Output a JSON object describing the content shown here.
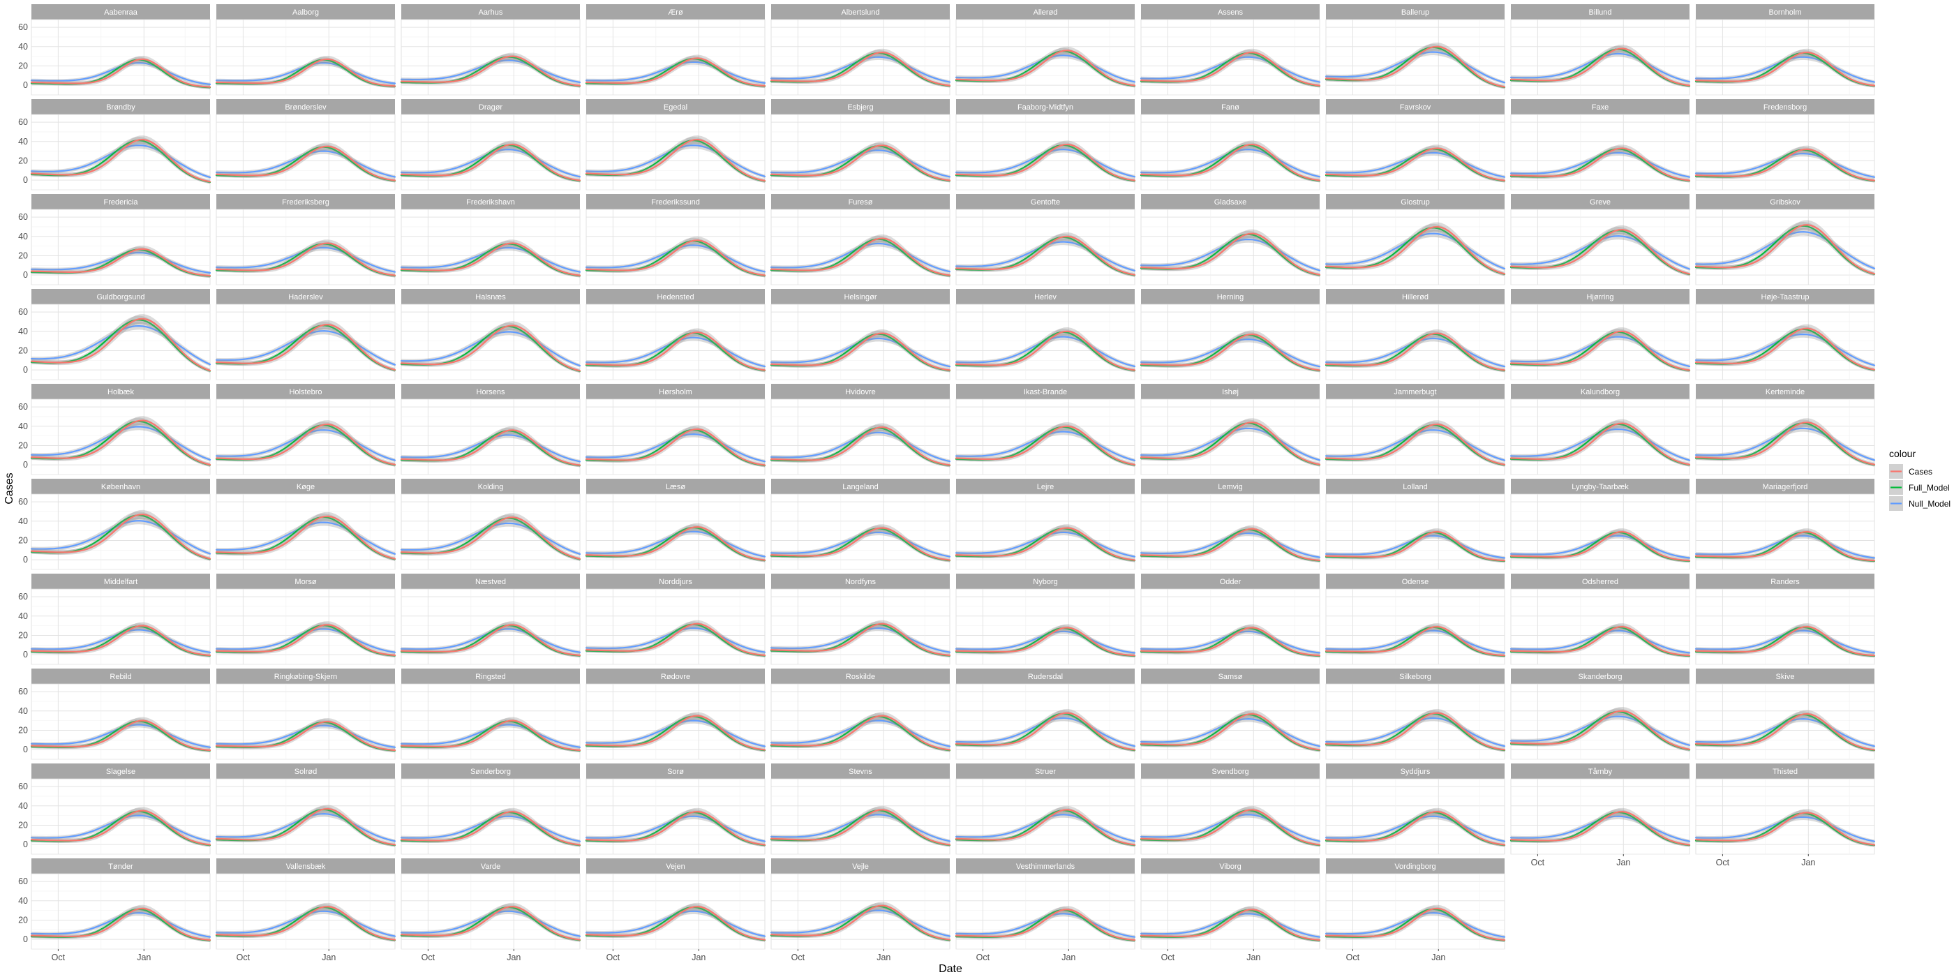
{
  "chart_data": {
    "type": "line",
    "facet": "municipality",
    "xlabel": "Date",
    "ylabel": "Cases",
    "x_ticks": [
      "Oct",
      "Jan"
    ],
    "y_ticks": [
      0,
      20,
      40,
      60
    ],
    "ylim": [
      -10,
      68
    ],
    "x_positions": [
      0,
      0.1,
      0.2,
      0.3,
      0.4,
      0.5,
      0.6,
      0.7,
      0.8,
      0.9,
      1.0
    ],
    "x_position_note": "x = fraction of the date range (Sep to Mar); Oct tick at 0.15, Jan tick at 0.63",
    "x_tick_positions": [
      0.15,
      0.63
    ],
    "grid": true,
    "legend": {
      "title": "colour",
      "placement": "right",
      "entries": [
        {
          "name": "Cases",
          "color": "#F8766D"
        },
        {
          "name": "Full_Model",
          "color": "#00BA38"
        },
        {
          "name": "Null_Model",
          "color": "#619CFF"
        }
      ]
    },
    "colors": {
      "Cases": "#F8766D",
      "Full_Model": "#00BA38",
      "Null_Model": "#619CFF",
      "strip": "#a6a6a6",
      "ribbon": "#999999"
    },
    "panels": [
      {
        "name": "Aabenraa",
        "peak": 27,
        "start": 3,
        "end": -1,
        "spread": 0.75
      },
      {
        "name": "Aalborg",
        "peak": 27,
        "start": 3,
        "end": 0,
        "spread": 0.75
      },
      {
        "name": "Aarhus",
        "peak": 30,
        "start": 4,
        "end": 0,
        "spread": 0.85
      },
      {
        "name": "Ærø",
        "peak": 28,
        "start": 3,
        "end": 0,
        "spread": 0.8
      },
      {
        "name": "Albertslund",
        "peak": 34,
        "start": 5,
        "end": 0,
        "spread": 0.85
      },
      {
        "name": "Allerød",
        "peak": 36,
        "start": 6,
        "end": 0,
        "spread": 0.85
      },
      {
        "name": "Assens",
        "peak": 34,
        "start": 5,
        "end": 0,
        "spread": 0.85
      },
      {
        "name": "Ballerup",
        "peak": 40,
        "start": 7,
        "end": -2,
        "spread": 0.9
      },
      {
        "name": "Billund",
        "peak": 38,
        "start": 6,
        "end": 0,
        "spread": 0.85
      },
      {
        "name": "Bornholm",
        "peak": 34,
        "start": 5,
        "end": 0,
        "spread": 0.85
      },
      {
        "name": "Brøndby",
        "peak": 42,
        "start": 7,
        "end": -2,
        "spread": 0.9
      },
      {
        "name": "Brønderslev",
        "peak": 35,
        "start": 6,
        "end": 0,
        "spread": 0.85
      },
      {
        "name": "Dragør",
        "peak": 37,
        "start": 6,
        "end": 0,
        "spread": 0.85
      },
      {
        "name": "Egedal",
        "peak": 42,
        "start": 7,
        "end": -1,
        "spread": 0.9
      },
      {
        "name": "Esbjerg",
        "peak": 36,
        "start": 6,
        "end": 0,
        "spread": 0.85
      },
      {
        "name": "Faaborg-Midtfyn",
        "peak": 37,
        "start": 6,
        "end": 0,
        "spread": 0.85
      },
      {
        "name": "Fanø",
        "peak": 37,
        "start": 6,
        "end": 0,
        "spread": 0.85
      },
      {
        "name": "Favrskov",
        "peak": 33,
        "start": 6,
        "end": 0,
        "spread": 0.85
      },
      {
        "name": "Faxe",
        "peak": 33,
        "start": 5,
        "end": 0,
        "spread": 0.85
      },
      {
        "name": "Fredensborg",
        "peak": 32,
        "start": 5,
        "end": 0,
        "spread": 0.85
      },
      {
        "name": "Fredericia",
        "peak": 27,
        "start": 4,
        "end": 0,
        "spread": 0.8
      },
      {
        "name": "Frederiksberg",
        "peak": 33,
        "start": 6,
        "end": 0,
        "spread": 0.85
      },
      {
        "name": "Frederikshavn",
        "peak": 33,
        "start": 6,
        "end": 0,
        "spread": 0.85
      },
      {
        "name": "Frederikssund",
        "peak": 36,
        "start": 6,
        "end": 0,
        "spread": 0.85
      },
      {
        "name": "Furesø",
        "peak": 38,
        "start": 6,
        "end": 0,
        "spread": 0.85
      },
      {
        "name": "Gentofte",
        "peak": 40,
        "start": 7,
        "end": 0,
        "spread": 0.9
      },
      {
        "name": "Gladsaxe",
        "peak": 43,
        "start": 8,
        "end": 0,
        "spread": 0.9
      },
      {
        "name": "Glostrup",
        "peak": 50,
        "start": 9,
        "end": 0,
        "spread": 0.95
      },
      {
        "name": "Greve",
        "peak": 47,
        "start": 9,
        "end": 0,
        "spread": 0.95
      },
      {
        "name": "Gribskov",
        "peak": 52,
        "start": 9,
        "end": 0,
        "spread": 0.95
      },
      {
        "name": "Guldborgsund",
        "peak": 53,
        "start": 9,
        "end": -3,
        "spread": 1.0
      },
      {
        "name": "Haderslev",
        "peak": 47,
        "start": 8,
        "end": -1,
        "spread": 0.95
      },
      {
        "name": "Halsnæs",
        "peak": 46,
        "start": 7,
        "end": -2,
        "spread": 0.95
      },
      {
        "name": "Hedensted",
        "peak": 39,
        "start": 6,
        "end": 0,
        "spread": 0.85
      },
      {
        "name": "Helsingør",
        "peak": 38,
        "start": 6,
        "end": 0,
        "spread": 0.85
      },
      {
        "name": "Herlev",
        "peak": 40,
        "start": 6,
        "end": 0,
        "spread": 0.85
      },
      {
        "name": "Herning",
        "peak": 37,
        "start": 6,
        "end": 0,
        "spread": 0.85
      },
      {
        "name": "Hillerød",
        "peak": 38,
        "start": 6,
        "end": 0,
        "spread": 0.85
      },
      {
        "name": "Hjørring",
        "peak": 40,
        "start": 7,
        "end": 0,
        "spread": 0.85
      },
      {
        "name": "Høje-Taastrup",
        "peak": 43,
        "start": 8,
        "end": 0,
        "spread": 0.9
      },
      {
        "name": "Holbæk",
        "peak": 46,
        "start": 8,
        "end": -1,
        "spread": 0.95
      },
      {
        "name": "Holstebro",
        "peak": 42,
        "start": 7,
        "end": 0,
        "spread": 0.9
      },
      {
        "name": "Horsens",
        "peak": 36,
        "start": 6,
        "end": 0,
        "spread": 0.85
      },
      {
        "name": "Hørsholm",
        "peak": 37,
        "start": 6,
        "end": 0,
        "spread": 0.85
      },
      {
        "name": "Hvidovre",
        "peak": 39,
        "start": 6,
        "end": 0,
        "spread": 0.85
      },
      {
        "name": "Ikast-Brande",
        "peak": 40,
        "start": 7,
        "end": 0,
        "spread": 0.9
      },
      {
        "name": "Ishøj",
        "peak": 44,
        "start": 8,
        "end": 0,
        "spread": 0.9
      },
      {
        "name": "Jammerbugt",
        "peak": 42,
        "start": 7,
        "end": 0,
        "spread": 0.9
      },
      {
        "name": "Kalundborg",
        "peak": 43,
        "start": 7,
        "end": 0,
        "spread": 0.9
      },
      {
        "name": "Kerteminde",
        "peak": 44,
        "start": 8,
        "end": 0,
        "spread": 0.9
      },
      {
        "name": "København",
        "peak": 47,
        "start": 9,
        "end": 0,
        "spread": 0.95
      },
      {
        "name": "Køge",
        "peak": 45,
        "start": 8,
        "end": 0,
        "spread": 0.95
      },
      {
        "name": "Kolding",
        "peak": 44,
        "start": 8,
        "end": 0,
        "spread": 0.95
      },
      {
        "name": "Læsø",
        "peak": 34,
        "start": 5,
        "end": 0,
        "spread": 0.85
      },
      {
        "name": "Langeland",
        "peak": 33,
        "start": 5,
        "end": 0,
        "spread": 0.85
      },
      {
        "name": "Lejre",
        "peak": 33,
        "start": 5,
        "end": 0,
        "spread": 0.85
      },
      {
        "name": "Lemvig",
        "peak": 32,
        "start": 5,
        "end": 0,
        "spread": 0.8
      },
      {
        "name": "Lolland",
        "peak": 29,
        "start": 4,
        "end": 0,
        "spread": 0.75
      },
      {
        "name": "Lyngby-Taarbæk",
        "peak": 29,
        "start": 4,
        "end": 0,
        "spread": 0.75
      },
      {
        "name": "Mariagerfjord",
        "peak": 29,
        "start": 4,
        "end": 0,
        "spread": 0.75
      },
      {
        "name": "Middelfart",
        "peak": 30,
        "start": 4,
        "end": 0,
        "spread": 0.8
      },
      {
        "name": "Morsø",
        "peak": 31,
        "start": 4,
        "end": 0,
        "spread": 0.8
      },
      {
        "name": "Næstved",
        "peak": 31,
        "start": 4,
        "end": 0,
        "spread": 0.8
      },
      {
        "name": "Norddjurs",
        "peak": 32,
        "start": 5,
        "end": 0,
        "spread": 0.8
      },
      {
        "name": "Nordfyns",
        "peak": 32,
        "start": 5,
        "end": 0,
        "spread": 0.8
      },
      {
        "name": "Nyborg",
        "peak": 28,
        "start": 4,
        "end": 0,
        "spread": 0.75
      },
      {
        "name": "Odder",
        "peak": 28,
        "start": 4,
        "end": 0,
        "spread": 0.75
      },
      {
        "name": "Odense",
        "peak": 29,
        "start": 4,
        "end": 0,
        "spread": 0.75
      },
      {
        "name": "Odsherred",
        "peak": 29,
        "start": 4,
        "end": 0,
        "spread": 0.75
      },
      {
        "name": "Randers",
        "peak": 29,
        "start": 4,
        "end": 0,
        "spread": 0.75
      },
      {
        "name": "Rebild",
        "peak": 30,
        "start": 4,
        "end": 0,
        "spread": 0.8
      },
      {
        "name": "Ringkøbing-Skjern",
        "peak": 29,
        "start": 4,
        "end": 0,
        "spread": 0.8
      },
      {
        "name": "Ringsted",
        "peak": 30,
        "start": 4,
        "end": 0,
        "spread": 0.8
      },
      {
        "name": "Rødovre",
        "peak": 35,
        "start": 5,
        "end": 0,
        "spread": 0.85
      },
      {
        "name": "Roskilde",
        "peak": 35,
        "start": 5,
        "end": 0,
        "spread": 0.85
      },
      {
        "name": "Rudersdal",
        "peak": 38,
        "start": 6,
        "end": 0,
        "spread": 0.85
      },
      {
        "name": "Samsø",
        "peak": 37,
        "start": 6,
        "end": 0,
        "spread": 0.85
      },
      {
        "name": "Silkeborg",
        "peak": 38,
        "start": 6,
        "end": 0,
        "spread": 0.85
      },
      {
        "name": "Skanderborg",
        "peak": 40,
        "start": 7,
        "end": 0,
        "spread": 0.9
      },
      {
        "name": "Skive",
        "peak": 37,
        "start": 6,
        "end": 0,
        "spread": 0.85
      },
      {
        "name": "Slagelse",
        "peak": 35,
        "start": 5,
        "end": 0,
        "spread": 0.85
      },
      {
        "name": "Solrød",
        "peak": 37,
        "start": 6,
        "end": 0,
        "spread": 0.85
      },
      {
        "name": "Sønderborg",
        "peak": 34,
        "start": 5,
        "end": 0,
        "spread": 0.85
      },
      {
        "name": "Sorø",
        "peak": 34,
        "start": 5,
        "end": 0,
        "spread": 0.85
      },
      {
        "name": "Stevns",
        "peak": 36,
        "start": 6,
        "end": 0,
        "spread": 0.85
      },
      {
        "name": "Struer",
        "peak": 36,
        "start": 6,
        "end": 0,
        "spread": 0.85
      },
      {
        "name": "Svendborg",
        "peak": 36,
        "start": 6,
        "end": 0,
        "spread": 0.85
      },
      {
        "name": "Syddjurs",
        "peak": 34,
        "start": 5,
        "end": 0,
        "spread": 0.85
      },
      {
        "name": "Tårnby",
        "peak": 34,
        "start": 5,
        "end": 0,
        "spread": 0.85
      },
      {
        "name": "Thisted",
        "peak": 33,
        "start": 5,
        "end": 0,
        "spread": 0.85
      },
      {
        "name": "Tønder",
        "peak": 32,
        "start": 4,
        "end": 0,
        "spread": 0.8
      },
      {
        "name": "Vallensbæk",
        "peak": 34,
        "start": 5,
        "end": 0,
        "spread": 0.85
      },
      {
        "name": "Varde",
        "peak": 34,
        "start": 5,
        "end": 0,
        "spread": 0.85
      },
      {
        "name": "Vejen",
        "peak": 34,
        "start": 5,
        "end": 0,
        "spread": 0.85
      },
      {
        "name": "Vejle",
        "peak": 35,
        "start": 5,
        "end": 0,
        "spread": 0.85
      },
      {
        "name": "Vesthimmerlands",
        "peak": 31,
        "start": 4,
        "end": 0,
        "spread": 0.8
      },
      {
        "name": "Viborg",
        "peak": 31,
        "start": 4,
        "end": 0,
        "spread": 0.8
      },
      {
        "name": "Vordingborg",
        "peak": 32,
        "start": 4,
        "end": 0,
        "spread": 0.8
      }
    ]
  }
}
